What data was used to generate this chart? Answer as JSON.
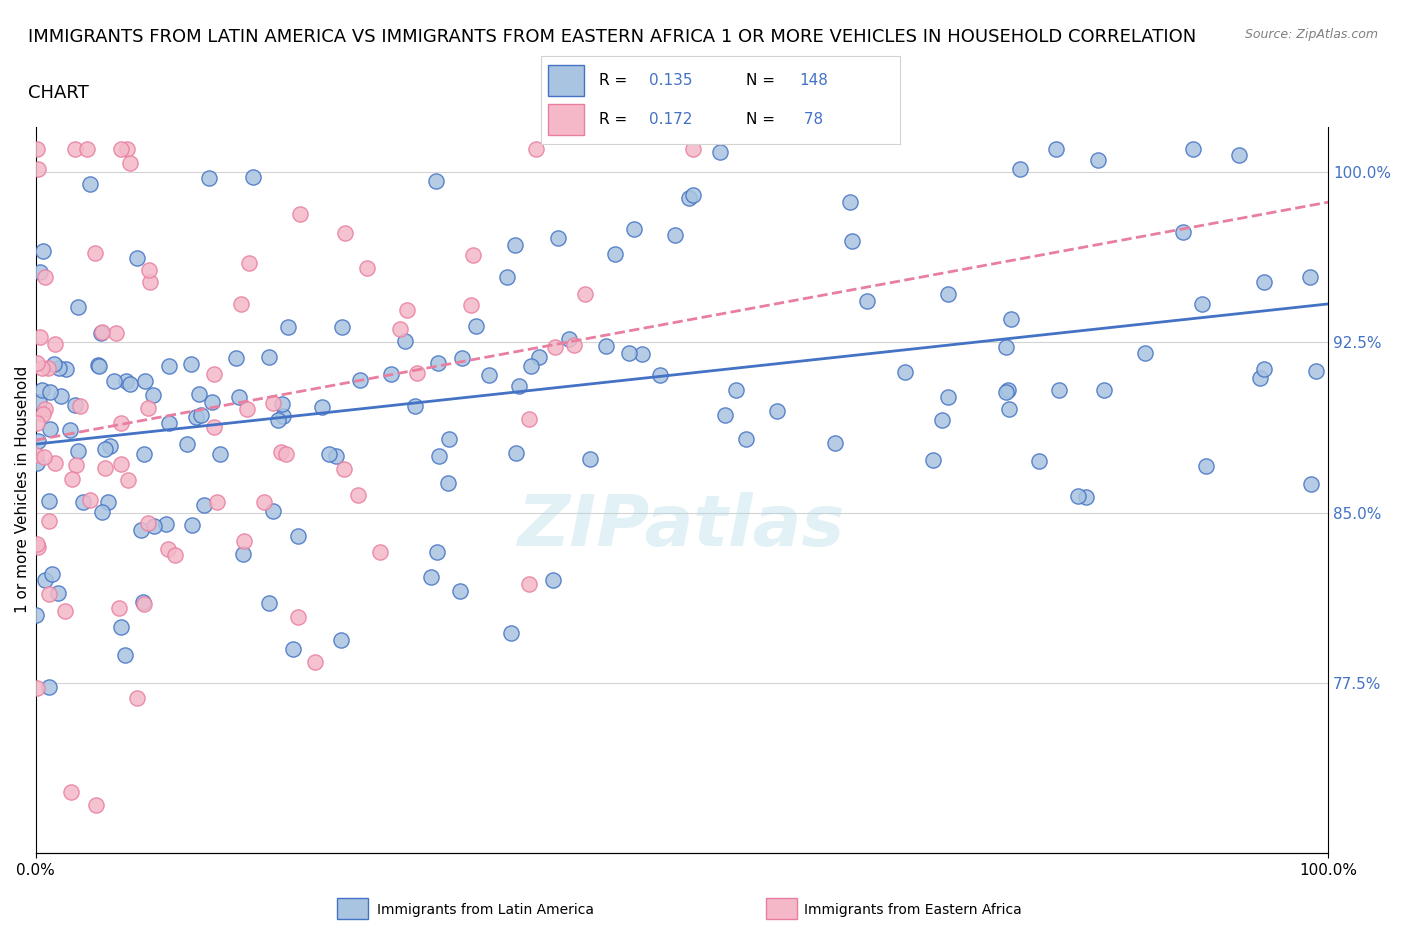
{
  "title_line1": "IMMIGRANTS FROM LATIN AMERICA VS IMMIGRANTS FROM EASTERN AFRICA 1 OR MORE VEHICLES IN HOUSEHOLD CORRELATION",
  "title_line2": "CHART",
  "source_text": "Source: ZipAtlas.com",
  "xlabel": "",
  "ylabel": "1 or more Vehicles in Household",
  "xmin": 0.0,
  "xmax": 1.0,
  "ymin": 0.7,
  "ymax": 1.02,
  "yticks": [
    0.775,
    0.85,
    0.925,
    1.0
  ],
  "ytick_labels": [
    "77.5%",
    "85.0%",
    "92.5%",
    "100.0%"
  ],
  "xticks": [
    0.0,
    1.0
  ],
  "xtick_labels": [
    "0.0%",
    "100.0%"
  ],
  "series_blue": {
    "R": 0.135,
    "N": 148,
    "color": "#a8c4e0",
    "line_color": "#4472c4",
    "label": "Immigrants from Latin America"
  },
  "series_pink": {
    "R": 0.172,
    "N": 78,
    "color": "#f4b8c8",
    "line_color": "#e87fa0",
    "label": "Immigrants from Eastern Africa"
  },
  "watermark": "ZIPatlas",
  "background_color": "#ffffff",
  "legend_R_color": "#4472c4",
  "title_fontsize": 13,
  "axis_label_fontsize": 11,
  "tick_label_fontsize": 11
}
